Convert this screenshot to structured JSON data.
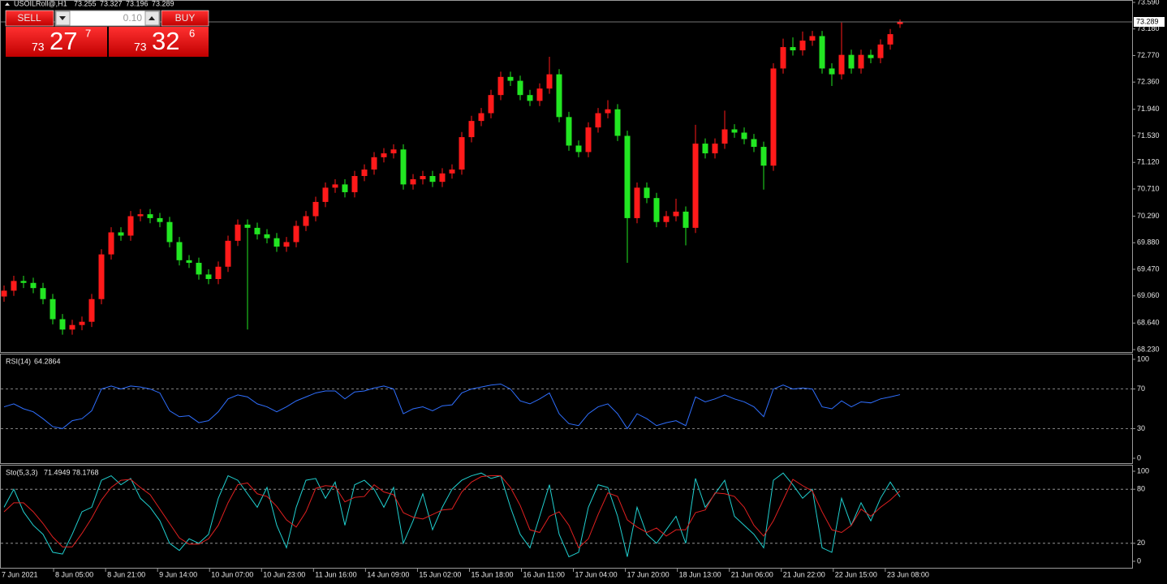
{
  "header": {
    "symbol": "USOILRoll@,H1"
  },
  "trade_panel": {
    "sell_label": "SELL",
    "buy_label": "BUY",
    "lot": "0.10",
    "sell_big": "73",
    "sell_main": "27",
    "sell_sup": "7",
    "buy_big": "73",
    "buy_main": "32",
    "buy_sup": "6"
  },
  "price_chart": {
    "type": "candlestick",
    "up_color": "#ff1a1a",
    "down_color": "#22e622",
    "ylim": [
      68.193,
      73.627
    ],
    "yticks": [
      {
        "value": 73.59,
        "label": "73.590"
      },
      {
        "value": 73.18,
        "label": "73.180"
      },
      {
        "value": 72.77,
        "label": "72.770"
      },
      {
        "value": 72.36,
        "label": "72.360"
      },
      {
        "value": 71.94,
        "label": "71.940"
      },
      {
        "value": 71.53,
        "label": "71.530"
      },
      {
        "value": 71.12,
        "label": "71.120"
      },
      {
        "value": 70.71,
        "label": "70.710"
      },
      {
        "value": 70.29,
        "label": "70.290"
      },
      {
        "value": 69.88,
        "label": "69.880"
      },
      {
        "value": 69.47,
        "label": "69.470"
      },
      {
        "value": 69.06,
        "label": "69.060"
      },
      {
        "value": 68.64,
        "label": "68.640"
      },
      {
        "value": 68.23,
        "label": "68.230"
      }
    ],
    "candles": [
      [
        69.05,
        69.22,
        68.97,
        69.14
      ],
      [
        69.14,
        69.37,
        69.06,
        69.29
      ],
      [
        69.29,
        69.37,
        69.18,
        69.26
      ],
      [
        69.26,
        69.34,
        69.1,
        69.18
      ],
      [
        69.18,
        69.26,
        68.93,
        69.01
      ],
      [
        69.01,
        69.09,
        68.62,
        68.7
      ],
      [
        68.7,
        68.78,
        68.46,
        68.54
      ],
      [
        68.54,
        68.69,
        68.46,
        68.61
      ],
      [
        68.61,
        68.74,
        68.53,
        68.66
      ],
      [
        68.66,
        69.09,
        68.58,
        69.01
      ],
      [
        69.01,
        69.78,
        68.93,
        69.7
      ],
      [
        69.7,
        70.12,
        69.62,
        70.04
      ],
      [
        70.04,
        70.12,
        69.91,
        69.99
      ],
      [
        69.99,
        70.37,
        69.91,
        70.29
      ],
      [
        70.29,
        70.4,
        70.21,
        70.32
      ],
      [
        70.32,
        70.4,
        70.18,
        70.26
      ],
      [
        70.26,
        70.34,
        70.12,
        70.2
      ],
      [
        70.2,
        70.28,
        69.81,
        69.89
      ],
      [
        69.89,
        69.97,
        69.53,
        69.61
      ],
      [
        69.61,
        69.69,
        69.49,
        69.57
      ],
      [
        69.57,
        69.65,
        69.31,
        69.39
      ],
      [
        69.39,
        69.47,
        69.24,
        69.32
      ],
      [
        69.32,
        69.59,
        69.24,
        69.51
      ],
      [
        69.51,
        69.99,
        69.43,
        69.91
      ],
      [
        69.91,
        70.24,
        69.83,
        70.16
      ],
      [
        70.16,
        70.24,
        68.54,
        70.11
      ],
      [
        70.11,
        70.19,
        69.93,
        70.01
      ],
      [
        70.01,
        70.09,
        69.87,
        69.95
      ],
      [
        69.95,
        70.03,
        69.74,
        69.82
      ],
      [
        69.82,
        69.97,
        69.74,
        69.89
      ],
      [
        69.89,
        70.22,
        69.81,
        70.14
      ],
      [
        70.14,
        70.37,
        70.06,
        70.29
      ],
      [
        70.29,
        70.59,
        70.21,
        70.51
      ],
      [
        70.51,
        70.81,
        70.43,
        70.73
      ],
      [
        70.73,
        70.86,
        70.65,
        70.78
      ],
      [
        70.78,
        70.86,
        70.58,
        70.66
      ],
      [
        70.66,
        70.99,
        70.58,
        70.91
      ],
      [
        70.91,
        71.09,
        70.83,
        71.01
      ],
      [
        71.01,
        71.28,
        70.93,
        71.2
      ],
      [
        71.2,
        71.34,
        71.12,
        71.26
      ],
      [
        71.26,
        71.4,
        71.18,
        71.32
      ],
      [
        71.32,
        71.4,
        70.7,
        70.78
      ],
      [
        70.78,
        70.94,
        70.7,
        70.86
      ],
      [
        70.86,
        70.99,
        70.78,
        70.91
      ],
      [
        70.91,
        70.99,
        70.74,
        70.82
      ],
      [
        70.82,
        71.03,
        70.74,
        70.95
      ],
      [
        70.95,
        71.09,
        70.87,
        71.01
      ],
      [
        71.01,
        71.59,
        70.93,
        71.51
      ],
      [
        71.51,
        71.84,
        71.43,
        71.76
      ],
      [
        71.76,
        71.96,
        71.68,
        71.88
      ],
      [
        71.88,
        72.24,
        71.8,
        72.16
      ],
      [
        72.16,
        72.52,
        72.08,
        72.44
      ],
      [
        72.44,
        72.52,
        72.3,
        72.38
      ],
      [
        72.38,
        72.46,
        72.08,
        72.16
      ],
      [
        72.16,
        72.24,
        71.99,
        72.07
      ],
      [
        72.07,
        72.34,
        71.99,
        72.26
      ],
      [
        72.26,
        72.75,
        72.18,
        72.48
      ],
      [
        72.48,
        72.56,
        71.74,
        71.82
      ],
      [
        71.82,
        71.9,
        71.3,
        71.38
      ],
      [
        71.38,
        71.46,
        71.2,
        71.28
      ],
      [
        71.28,
        71.74,
        71.2,
        71.66
      ],
      [
        71.66,
        71.96,
        71.58,
        71.88
      ],
      [
        71.88,
        72.08,
        71.8,
        71.94
      ],
      [
        71.94,
        72.02,
        71.45,
        71.53
      ],
      [
        71.53,
        71.61,
        69.57,
        70.26
      ],
      [
        70.26,
        70.81,
        70.18,
        70.73
      ],
      [
        70.73,
        70.81,
        70.49,
        70.57
      ],
      [
        70.57,
        70.65,
        70.12,
        70.2
      ],
      [
        70.2,
        70.37,
        70.12,
        70.29
      ],
      [
        70.29,
        70.56,
        70.21,
        70.36
      ],
      [
        70.36,
        70.44,
        69.84,
        70.11
      ],
      [
        70.11,
        71.7,
        70.03,
        71.41
      ],
      [
        71.41,
        71.49,
        71.18,
        71.26
      ],
      [
        71.26,
        71.49,
        71.18,
        71.41
      ],
      [
        71.41,
        71.92,
        71.33,
        71.63
      ],
      [
        71.63,
        71.71,
        71.5,
        71.58
      ],
      [
        71.58,
        71.66,
        71.4,
        71.48
      ],
      [
        71.48,
        71.56,
        71.28,
        71.36
      ],
      [
        71.36,
        71.44,
        70.7,
        71.07
      ],
      [
        71.07,
        72.65,
        70.99,
        72.57
      ],
      [
        72.57,
        73.03,
        72.49,
        72.9
      ],
      [
        72.9,
        73.05,
        72.77,
        72.85
      ],
      [
        72.85,
        73.14,
        72.77,
        73.0
      ],
      [
        73.0,
        73.15,
        72.92,
        73.07
      ],
      [
        73.07,
        73.15,
        72.49,
        72.57
      ],
      [
        72.57,
        72.65,
        72.3,
        72.48
      ],
      [
        72.48,
        73.28,
        72.4,
        72.78
      ],
      [
        72.78,
        72.86,
        72.49,
        72.57
      ],
      [
        72.57,
        72.86,
        72.49,
        72.78
      ],
      [
        72.78,
        72.86,
        72.65,
        72.73
      ],
      [
        72.73,
        73.02,
        72.65,
        72.94
      ],
      [
        72.94,
        73.18,
        72.86,
        73.1
      ],
      [
        73.255,
        73.327,
        73.196,
        73.289
      ]
    ]
  },
  "rsi": {
    "type": "line",
    "label": "RSI(14)",
    "color": "#2f6fff",
    "ylim": [
      -4.9,
      104.9
    ],
    "yticks": [
      100,
      70,
      30,
      0
    ],
    "levels": [
      70,
      30
    ],
    "values": [
      52,
      55,
      50,
      47,
      40,
      32,
      30,
      38,
      40,
      48,
      70,
      73,
      70,
      73,
      72,
      70,
      66,
      48,
      42,
      43,
      36,
      38,
      47,
      60,
      64,
      62,
      55,
      52,
      47,
      52,
      58,
      62,
      66,
      68,
      68,
      60,
      67,
      68,
      71,
      73,
      70,
      45,
      50,
      52,
      48,
      53,
      54,
      66,
      70,
      72,
      74,
      75,
      70,
      58,
      55,
      60,
      66,
      45,
      35,
      33,
      45,
      52,
      55,
      45,
      30,
      45,
      40,
      33,
      36,
      38,
      33,
      62,
      57,
      60,
      64,
      60,
      57,
      52,
      42,
      70,
      74,
      70,
      71,
      70,
      52,
      50,
      58,
      52,
      57,
      56,
      60,
      62,
      64.2864
    ]
  },
  "stochastic": {
    "type": "line",
    "label": "Sto(5,3,3)",
    "ylim": [
      -7.2,
      106.3
    ],
    "yticks": [
      100,
      80,
      20,
      0
    ],
    "levels": [
      80,
      20
    ],
    "series": [
      {
        "color": "#20d0d0",
        "values": [
          60,
          80,
          55,
          40,
          30,
          10,
          8,
          30,
          55,
          60,
          90,
          95,
          85,
          92,
          70,
          60,
          45,
          20,
          12,
          25,
          20,
          30,
          70,
          95,
          90,
          75,
          60,
          82,
          40,
          15,
          60,
          90,
          92,
          70,
          88,
          40,
          85,
          90,
          80,
          60,
          82,
          20,
          45,
          75,
          35,
          60,
          80,
          90,
          95,
          98,
          92,
          95,
          60,
          30,
          15,
          50,
          85,
          30,
          5,
          10,
          60,
          85,
          82,
          50,
          5,
          60,
          30,
          20,
          35,
          50,
          20,
          92,
          60,
          75,
          90,
          50,
          40,
          30,
          15,
          90,
          98,
          85,
          70,
          80,
          15,
          10,
          70,
          40,
          65,
          45,
          70,
          88,
          71.4949
        ]
      },
      {
        "color": "#e02020",
        "values": [
          55,
          65,
          65,
          55,
          42,
          27,
          16,
          16,
          31,
          48,
          68,
          82,
          90,
          91,
          82,
          74,
          58,
          42,
          26,
          19,
          19,
          25,
          40,
          65,
          85,
          87,
          75,
          72,
          61,
          46,
          38,
          55,
          81,
          84,
          83,
          66,
          71,
          72,
          85,
          77,
          74,
          54,
          49,
          47,
          52,
          57,
          58,
          77,
          88,
          94,
          95,
          95,
          82,
          62,
          35,
          32,
          50,
          55,
          40,
          15,
          25,
          52,
          76,
          72,
          46,
          38,
          32,
          37,
          28,
          35,
          35,
          54,
          57,
          76,
          75,
          72,
          60,
          40,
          28,
          45,
          68,
          91,
          84,
          78,
          55,
          35,
          32,
          40,
          58,
          50,
          60,
          68,
          78.1768
        ]
      }
    ]
  },
  "time_axis": {
    "labels": [
      "7 Jun 2021",
      "8 Jun 05:00",
      "8 Jun 21:00",
      "9 Jun 14:00",
      "10 Jun 07:00",
      "10 Jun 23:00",
      "11 Jun 16:00",
      "14 Jun 09:00",
      "15 Jun 02:00",
      "15 Jun 18:00",
      "16 Jun 11:00",
      "17 Jun 04:00",
      "17 Jun 20:00",
      "18 Jun 13:00",
      "21 Jun 06:00",
      "21 Jun 22:00",
      "22 Jun 15:00",
      "23 Jun 08:00"
    ]
  }
}
